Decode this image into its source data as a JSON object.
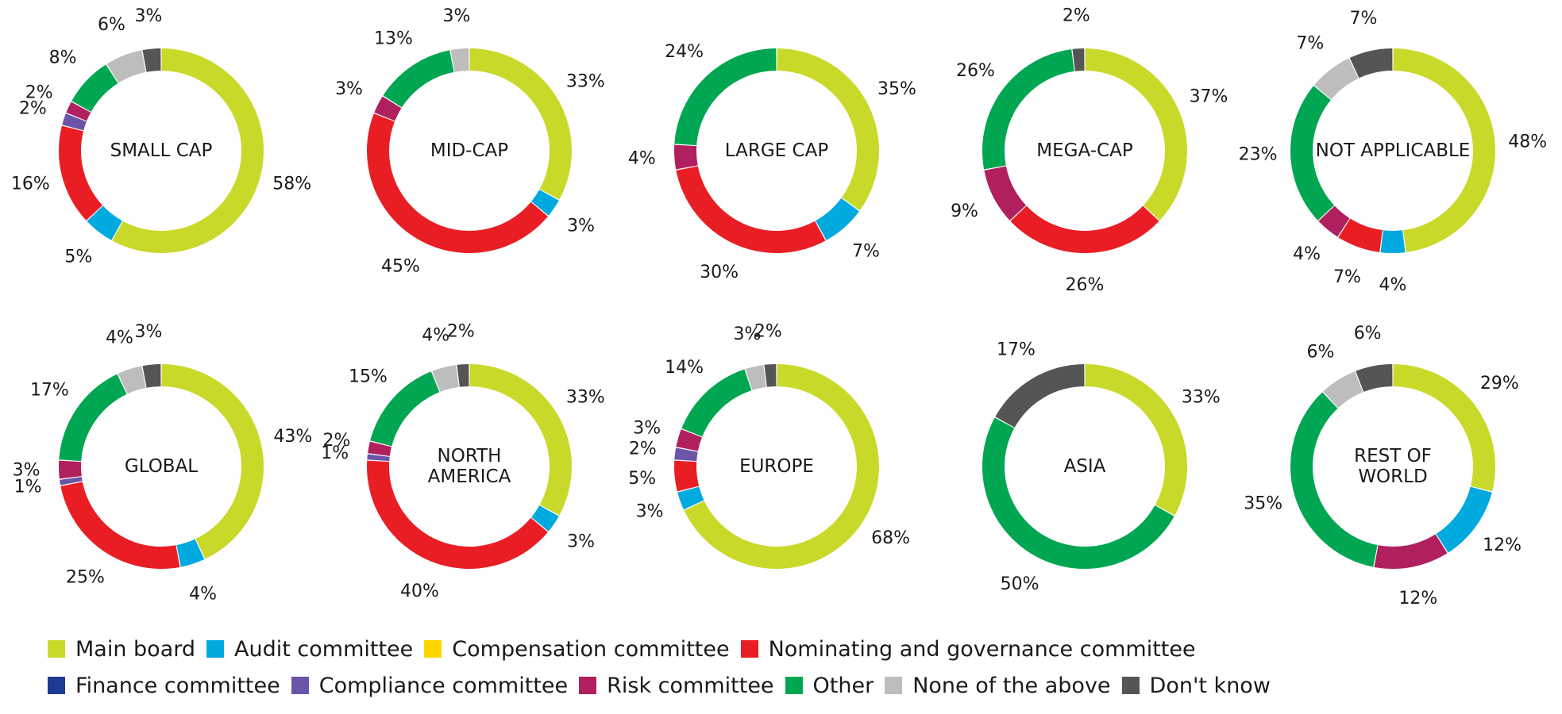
{
  "categories": [
    "Main board",
    "Audit committee",
    "Compensation committee",
    "Nominating and governance committee",
    "Finance committee",
    "Compliance committee",
    "Risk committee",
    "Other",
    "None of the above",
    "Don't know"
  ],
  "colors": [
    "#c9d92a",
    "#00a9de",
    "#ffd600",
    "#e91e24",
    "#1f3a93",
    "#6a55a8",
    "#b0205f",
    "#00a651",
    "#bdbdbd",
    "#555555"
  ],
  "legend_rows": [
    [
      0,
      1,
      2,
      3
    ],
    [
      4,
      5,
      6,
      7,
      8,
      9
    ]
  ],
  "chart_data": [
    {
      "type": "pie",
      "title": "SMALL CAP",
      "values": [
        58,
        5,
        0,
        16,
        0,
        2,
        2,
        8,
        6,
        3
      ],
      "labels": [
        "58%",
        "5%",
        null,
        "16%",
        null,
        "2%",
        "2%",
        "8%",
        "6%",
        "3%"
      ]
    },
    {
      "type": "pie",
      "title": "MID-CAP",
      "values": [
        33,
        3,
        0,
        45,
        0,
        0,
        3,
        13,
        3,
        0
      ],
      "labels": [
        "33%",
        "3%",
        null,
        "45%",
        null,
        null,
        "3%",
        "13%",
        "3%",
        null
      ]
    },
    {
      "type": "pie",
      "title": "LARGE CAP",
      "values": [
        35,
        7,
        0,
        30,
        0,
        0,
        4,
        24,
        0,
        0
      ],
      "labels": [
        "35%",
        "7%",
        null,
        "30%",
        null,
        null,
        "4%",
        "24%",
        null,
        null
      ]
    },
    {
      "type": "pie",
      "title": "MEGA-CAP",
      "values": [
        37,
        0,
        0,
        26,
        0,
        0,
        9,
        26,
        0,
        2
      ],
      "labels": [
        "37%",
        null,
        null,
        "26%",
        null,
        null,
        "9%",
        "26%",
        null,
        "2%"
      ]
    },
    {
      "type": "pie",
      "title": "NOT APPLICABLE",
      "values": [
        48,
        4,
        0,
        7,
        0,
        0,
        4,
        23,
        7,
        7
      ],
      "labels": [
        "48%",
        "4%",
        null,
        "7%",
        null,
        null,
        "4%",
        "23%",
        "7%",
        "7%"
      ]
    },
    {
      "type": "pie",
      "title": "GLOBAL",
      "values": [
        43,
        4,
        0,
        25,
        0,
        1,
        3,
        17,
        4,
        3
      ],
      "labels": [
        "43%",
        "4%",
        null,
        "25%",
        null,
        "1%",
        "3%",
        "17%",
        "4%",
        "3%"
      ]
    },
    {
      "type": "pie",
      "title": "NORTH AMERICA",
      "title_lines": [
        "NORTH",
        "AMERICA"
      ],
      "values": [
        33,
        3,
        0,
        40,
        0,
        1,
        2,
        15,
        4,
        2
      ],
      "labels": [
        "33%",
        "3%",
        null,
        "40%",
        null,
        "1%",
        "2%",
        "15%",
        "4%",
        "2%"
      ]
    },
    {
      "type": "pie",
      "title": "EUROPE",
      "values": [
        68,
        3,
        0,
        5,
        0,
        2,
        3,
        14,
        3,
        2
      ],
      "labels": [
        "68%",
        "3%",
        null,
        "5%",
        null,
        "2%",
        "3%",
        "14%",
        "3%",
        "2%"
      ]
    },
    {
      "type": "pie",
      "title": "ASIA",
      "values": [
        33,
        0,
        0,
        0,
        0,
        0,
        0,
        50,
        0,
        17
      ],
      "labels": [
        "33%",
        null,
        null,
        null,
        null,
        null,
        null,
        "50%",
        null,
        "17%"
      ]
    },
    {
      "type": "pie",
      "title": "REST OF WORLD",
      "title_lines": [
        "REST OF",
        "WORLD"
      ],
      "values": [
        29,
        12,
        0,
        0,
        0,
        0,
        12,
        35,
        6,
        6
      ],
      "labels": [
        "29%",
        "12%",
        null,
        null,
        null,
        null,
        "12%",
        "35%",
        "6%",
        "6%"
      ]
    }
  ]
}
